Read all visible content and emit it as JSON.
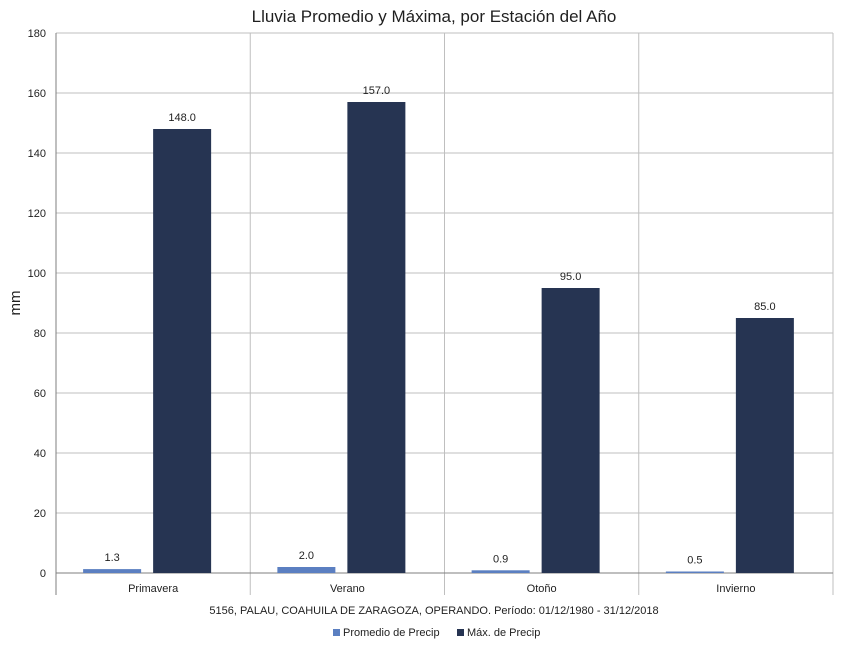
{
  "chart_data": {
    "type": "bar",
    "title": "Lluvia Promedio y Máxima, por Estación del Año",
    "xlabel": "5156, PALAU, COAHUILA DE ZARAGOZA, OPERANDO. Período: 01/12/1980 - 31/12/2018",
    "ylabel": "mm",
    "categories": [
      "Primavera",
      "Verano",
      "Otoño",
      "Invierno"
    ],
    "series": [
      {
        "name": "Promedio de Precip",
        "color": "#5b7fc1",
        "values": [
          1.3,
          2.0,
          0.9,
          0.5
        ],
        "labels": [
          "1.3",
          "2.0",
          "0.9",
          "0.5"
        ]
      },
      {
        "name": "Máx. de Precip",
        "color": "#263452",
        "values": [
          148.0,
          157.0,
          95.0,
          85.0
        ],
        "labels": [
          "148.0",
          "157.0",
          "95.0",
          "85.0"
        ]
      }
    ],
    "ylim": [
      0,
      180
    ],
    "yticks": [
      "0",
      "20",
      "40",
      "60",
      "80",
      "100",
      "120",
      "140",
      "160",
      "180"
    ],
    "grid": true,
    "legend_position": "bottom"
  }
}
